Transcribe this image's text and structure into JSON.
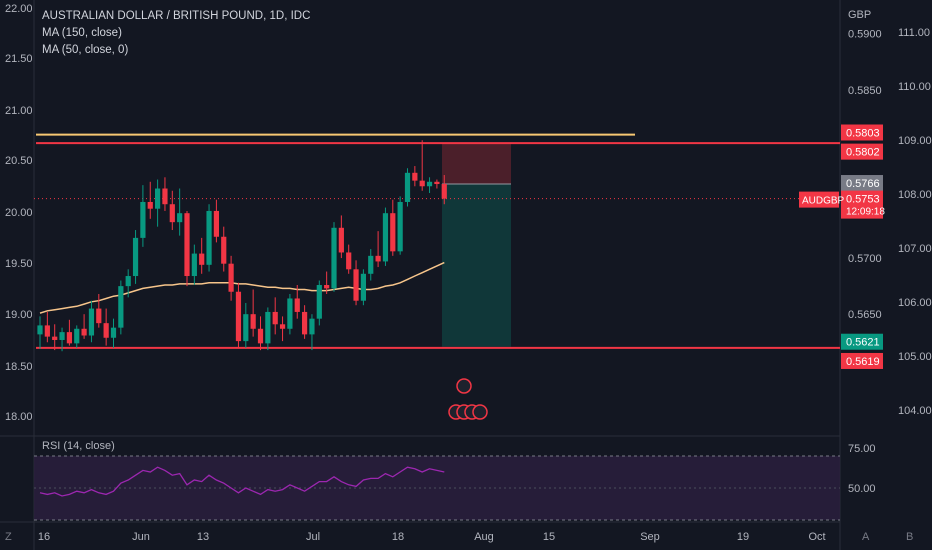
{
  "chart_data": {
    "type": "candlestick",
    "title": "AUSTRALIAN DOLLAR / BRITISH POUND, 1D, IDC",
    "indicators": [
      "MA (150, close)",
      "MA (50, close, 0)"
    ],
    "rsi_label": "RSI (14, close)",
    "symbol": "AUDGBP",
    "right_axis_unit": "GBP",
    "right_axis_ticks": [
      "0.5900",
      "0.5850",
      "0.5700",
      "0.5650"
    ],
    "left_axis_ticks": [
      "22.00",
      "21.50",
      "21.00",
      "20.50",
      "20.00",
      "19.50",
      "19.00",
      "18.50",
      "18.00"
    ],
    "far_right_axis_ticks": [
      "111.00",
      "110.00",
      "109.00",
      "108.00",
      "107.00",
      "106.00",
      "105.00",
      "104.00"
    ],
    "rsi_ticks": [
      "75.00",
      "50.00"
    ],
    "x_ticks": [
      "16",
      "Jun",
      "13",
      "Jul",
      "18",
      "Aug",
      "15",
      "Sep",
      "19",
      "Oct"
    ],
    "price_tags": {
      "upper_res_a": "0.5803",
      "upper_res_b": "0.5802",
      "prev_close": "0.5766",
      "last_price": "0.5753",
      "countdown": "12:09:18",
      "support_a": "0.5621",
      "support_b": "0.5619"
    },
    "ohlc": [
      [
        0.5632,
        0.5648,
        0.5619,
        0.564
      ],
      [
        0.564,
        0.5652,
        0.5625,
        0.563
      ],
      [
        0.563,
        0.5641,
        0.5618,
        0.5627
      ],
      [
        0.5627,
        0.5638,
        0.5617,
        0.5634
      ],
      [
        0.5634,
        0.5645,
        0.5622,
        0.5624
      ],
      [
        0.5624,
        0.564,
        0.562,
        0.5637
      ],
      [
        0.5637,
        0.565,
        0.5628,
        0.5631
      ],
      [
        0.5631,
        0.5662,
        0.5625,
        0.5655
      ],
      [
        0.5655,
        0.5668,
        0.5638,
        0.5642
      ],
      [
        0.5642,
        0.5655,
        0.5622,
        0.5629
      ],
      [
        0.5629,
        0.5646,
        0.562,
        0.5638
      ],
      [
        0.5638,
        0.568,
        0.5632,
        0.5675
      ],
      [
        0.5675,
        0.569,
        0.5665,
        0.5684
      ],
      [
        0.5684,
        0.5725,
        0.5677,
        0.5718
      ],
      [
        0.5718,
        0.5765,
        0.571,
        0.575
      ],
      [
        0.575,
        0.5768,
        0.5735,
        0.5744
      ],
      [
        0.5744,
        0.577,
        0.5728,
        0.5762
      ],
      [
        0.5762,
        0.5772,
        0.5742,
        0.5748
      ],
      [
        0.5748,
        0.576,
        0.5725,
        0.5732
      ],
      [
        0.5732,
        0.5762,
        0.572,
        0.574
      ],
      [
        0.574,
        0.5742,
        0.5675,
        0.5684
      ],
      [
        0.5684,
        0.5712,
        0.5676,
        0.5704
      ],
      [
        0.5704,
        0.5718,
        0.5686,
        0.5694
      ],
      [
        0.5694,
        0.5748,
        0.5688,
        0.5742
      ],
      [
        0.5742,
        0.5752,
        0.5714,
        0.5719
      ],
      [
        0.5719,
        0.5728,
        0.5688,
        0.5695
      ],
      [
        0.5695,
        0.5702,
        0.5662,
        0.567
      ],
      [
        0.567,
        0.5678,
        0.562,
        0.5626
      ],
      [
        0.5626,
        0.566,
        0.562,
        0.565
      ],
      [
        0.565,
        0.5672,
        0.563,
        0.5637
      ],
      [
        0.5637,
        0.5648,
        0.5618,
        0.5624
      ],
      [
        0.5624,
        0.5656,
        0.5618,
        0.5652
      ],
      [
        0.5652,
        0.5665,
        0.5632,
        0.5641
      ],
      [
        0.5641,
        0.5648,
        0.5626,
        0.5637
      ],
      [
        0.5637,
        0.5668,
        0.5632,
        0.5664
      ],
      [
        0.5664,
        0.5676,
        0.5646,
        0.5652
      ],
      [
        0.5652,
        0.5658,
        0.5628,
        0.5632
      ],
      [
        0.5632,
        0.565,
        0.5618,
        0.5646
      ],
      [
        0.5646,
        0.568,
        0.564,
        0.5676
      ],
      [
        0.5676,
        0.5688,
        0.5668,
        0.5673
      ],
      [
        0.5673,
        0.5732,
        0.567,
        0.5727
      ],
      [
        0.5727,
        0.5738,
        0.57,
        0.5705
      ],
      [
        0.5705,
        0.5712,
        0.5686,
        0.569
      ],
      [
        0.569,
        0.5698,
        0.5658,
        0.5662
      ],
      [
        0.5662,
        0.569,
        0.5658,
        0.5686
      ],
      [
        0.5686,
        0.5708,
        0.568,
        0.5702
      ],
      [
        0.5702,
        0.5724,
        0.5692,
        0.5697
      ],
      [
        0.5697,
        0.5745,
        0.5693,
        0.574
      ],
      [
        0.574,
        0.5752,
        0.5702,
        0.5706
      ],
      [
        0.5706,
        0.5755,
        0.5703,
        0.575
      ],
      [
        0.575,
        0.578,
        0.5746,
        0.5776
      ],
      [
        0.5776,
        0.5782,
        0.5764,
        0.5769
      ],
      [
        0.5769,
        0.5805,
        0.576,
        0.5764
      ],
      [
        0.5764,
        0.5772,
        0.5758,
        0.5768
      ],
      [
        0.5768,
        0.577,
        0.5762,
        0.5766
      ],
      [
        0.5766,
        0.5774,
        0.5748,
        0.5753
      ]
    ],
    "ma50": [
      0.5651,
      0.5653,
      0.5654,
      0.5655,
      0.5656,
      0.5657,
      0.5659,
      0.5661,
      0.5662,
      0.5664,
      0.5666,
      0.5667,
      0.5669,
      0.5671,
      0.5673,
      0.5674,
      0.5675,
      0.5676,
      0.5676,
      0.5677,
      0.5677,
      0.5677,
      0.5677,
      0.5678,
      0.5678,
      0.5678,
      0.5678,
      0.5677,
      0.5677,
      0.5676,
      0.5675,
      0.5674,
      0.5674,
      0.5673,
      0.5673,
      0.5672,
      0.5672,
      0.5671,
      0.5671,
      0.5671,
      0.5672,
      0.5673,
      0.5674,
      0.5673,
      0.5672,
      0.5672,
      0.5673,
      0.5675,
      0.5676,
      0.5678,
      0.5681,
      0.5684,
      0.5687,
      0.569,
      0.5693,
      0.5696
    ],
    "rsi": [
      47,
      46,
      47,
      45,
      46,
      48,
      47,
      49,
      47,
      46,
      48,
      53,
      55,
      58,
      61,
      60,
      63,
      61,
      58,
      59,
      52,
      55,
      54,
      58,
      55,
      53,
      50,
      47,
      50,
      48,
      46,
      49,
      48,
      49,
      52,
      50,
      48,
      51,
      54,
      54,
      57,
      54,
      52,
      51,
      55,
      56,
      56,
      59,
      57,
      60,
      63,
      62,
      60,
      62,
      61,
      60
    ],
    "levels": {
      "upper_yellow": 0.581,
      "upper_red": 0.58025,
      "support_red": 0.562,
      "position_entry": 0.5766,
      "position_stop": 0.5803,
      "position_target": 0.5621
    },
    "y_range": [
      0.5545,
      0.593
    ],
    "rsi_range": [
      30,
      80
    ]
  }
}
